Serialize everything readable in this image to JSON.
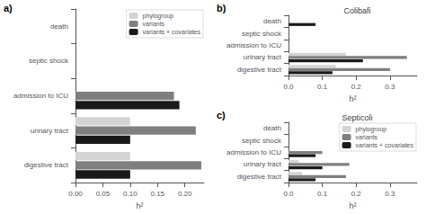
{
  "chart_data": [
    {
      "type": "bar",
      "orientation": "horizontal",
      "annotations": [
        "a)"
      ],
      "categories": [
        "death",
        "septic shock",
        "admission to ICU",
        "urinary tract",
        "digestive tract"
      ],
      "series": [
        {
          "name": "phylogroup",
          "color": "#d4d4d4",
          "values": [
            0.0,
            0.0,
            0.0,
            0.1,
            0.1
          ]
        },
        {
          "name": "variants",
          "color": "#7f7f7f",
          "values": [
            0.0,
            0.0,
            0.18,
            0.22,
            0.23
          ]
        },
        {
          "name": "variants + covariates",
          "color": "#1a1a1a",
          "values": [
            0.0,
            0.0,
            0.19,
            0.1,
            0.1
          ]
        }
      ],
      "xlabel": "h²",
      "xlim": [
        0,
        0.235
      ],
      "xticks": [
        {
          "value": 0,
          "label": "0.00"
        },
        0.05,
        {
          "value": 0.1,
          "label": "0.10"
        },
        0.15,
        {
          "value": 0.2,
          "label": "0.20"
        }
      ],
      "legend": "upper right",
      "grid": false
    },
    {
      "type": "bar",
      "orientation": "horizontal",
      "title": "Colibafi",
      "annotations": [
        "b)"
      ],
      "categories": [
        "death",
        "septic shock",
        "admission to ICU",
        "urinary tract",
        "digestive tract"
      ],
      "series": [
        {
          "name": "phylogroup",
          "color": "#d4d4d4",
          "values": [
            0.0,
            0.0,
            0.0,
            0.17,
            0.14
          ]
        },
        {
          "name": "variants",
          "color": "#7f7f7f",
          "values": [
            0.0,
            0.0,
            0.0,
            0.35,
            0.3
          ]
        },
        {
          "name": "variants + covariates",
          "color": "#1a1a1a",
          "values": [
            0.08,
            0.0,
            0.0,
            0.22,
            0.13
          ]
        }
      ],
      "xlabel": "h²",
      "xlim": [
        0,
        0.38
      ],
      "xticks": [
        {
          "value": 0,
          "label": "0.0"
        },
        0.1,
        0.2,
        0.3
      ],
      "legend": false,
      "grid": false
    },
    {
      "type": "bar",
      "orientation": "horizontal",
      "title": "Septicoli",
      "annotations": [
        "c)"
      ],
      "categories": [
        "death",
        "septic shock",
        "admission to ICU",
        "urinary tract",
        "digestive tract"
      ],
      "series": [
        {
          "name": "phylogroup",
          "color": "#d4d4d4",
          "values": [
            0.0,
            0.0,
            0.0,
            0.03,
            0.04
          ]
        },
        {
          "name": "variants",
          "color": "#7f7f7f",
          "values": [
            0.0,
            0.0,
            0.1,
            0.18,
            0.17
          ]
        },
        {
          "name": "variants + covariates",
          "color": "#1a1a1a",
          "values": [
            0.0,
            0.0,
            0.08,
            0.1,
            0.08
          ]
        }
      ],
      "xlabel": "h²",
      "xlim": [
        0,
        0.38
      ],
      "xticks": [
        {
          "value": 0,
          "label": "0.0"
        },
        0.1,
        0.2,
        0.3
      ],
      "legend": "upper right",
      "grid": false
    }
  ]
}
